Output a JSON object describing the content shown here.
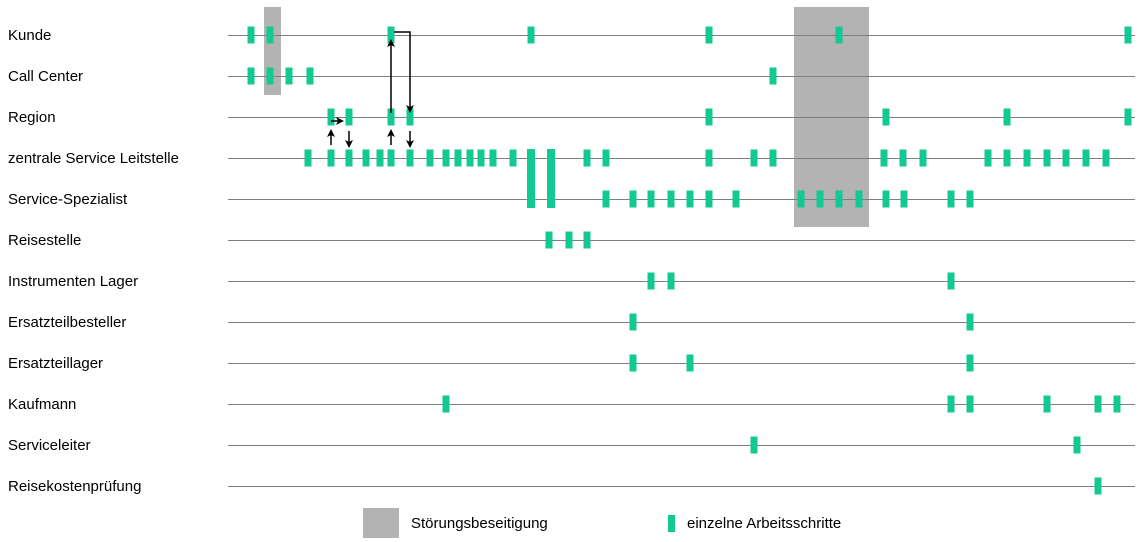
{
  "colors": {
    "step": "#12c991",
    "disturbance": "#b3b3b3",
    "lane_line": "#7f7f7f",
    "arrow": "#000000"
  },
  "lanes": [
    "Kunde",
    "Call Center",
    "Region",
    "zentrale Service Leitstelle",
    "Service-Spezialist",
    "Reisestelle",
    "Instrumenten Lager",
    "Ersatzteilbesteller",
    "Ersatzteillager",
    "Kaufmann",
    "Serviceleiter",
    "Reisekostenprüfung"
  ],
  "legend": {
    "disturbance_label": "Störungsbeseitigung",
    "step_label": "einzelne Arbeitsschritte"
  }
}
